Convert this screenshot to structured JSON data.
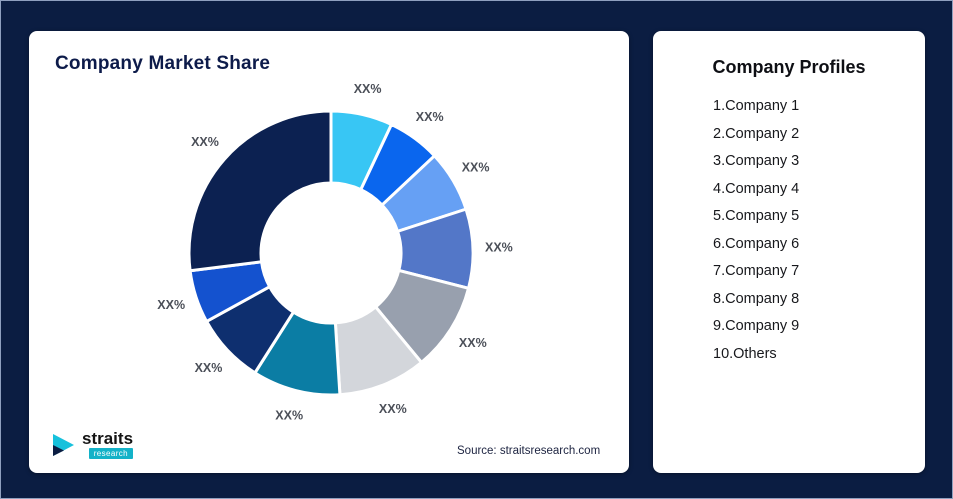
{
  "page": {
    "background": "#0b1d42",
    "accent_teal": "#13b2c8"
  },
  "left_card": {
    "title": "Company Market Share",
    "source": "Source: straitsresearch.com",
    "logo": {
      "name": "straits",
      "sub": "research"
    }
  },
  "right_card": {
    "title": "Company Profiles",
    "items": [
      "1.Company 1",
      "2.Company 2",
      "3.Company 3",
      "4.Company 4",
      "5.Company 5",
      "6.Company 6",
      "7.Company 7",
      "8.Company 8",
      "9.Company 9",
      "10.Others"
    ]
  },
  "chart_data": {
    "type": "pie",
    "title": "Company Market Share",
    "donut": true,
    "inner_radius_ratio": 0.49,
    "start_angle_deg": -90,
    "direction": "clockwise",
    "values_estimated_from_pixels": true,
    "segments": [
      {
        "name": "Company 1",
        "label": "XX%",
        "value": 7,
        "color": "#38c6f4"
      },
      {
        "name": "Company 2",
        "label": "XX%",
        "value": 6,
        "color": "#0a66ee"
      },
      {
        "name": "Company 3",
        "label": "XX%",
        "value": 7,
        "color": "#66a0f4"
      },
      {
        "name": "Company 4",
        "label": "XX%",
        "value": 9,
        "color": "#5377c8"
      },
      {
        "name": "Company 5",
        "label": "XX%",
        "value": 10,
        "color": "#98a0ae"
      },
      {
        "name": "Company 6",
        "label": "XX%",
        "value": 10,
        "color": "#d3d6db"
      },
      {
        "name": "Company 7",
        "label": "XX%",
        "value": 10,
        "color": "#0b7da4"
      },
      {
        "name": "Company 8",
        "label": "XX%",
        "value": 8,
        "color": "#0e2f6f"
      },
      {
        "name": "Company 9",
        "label": "XX%",
        "value": 6,
        "color": "#1452cf"
      },
      {
        "name": "Others",
        "label": "XX%",
        "value": 27,
        "color": "#0c2151"
      }
    ]
  }
}
